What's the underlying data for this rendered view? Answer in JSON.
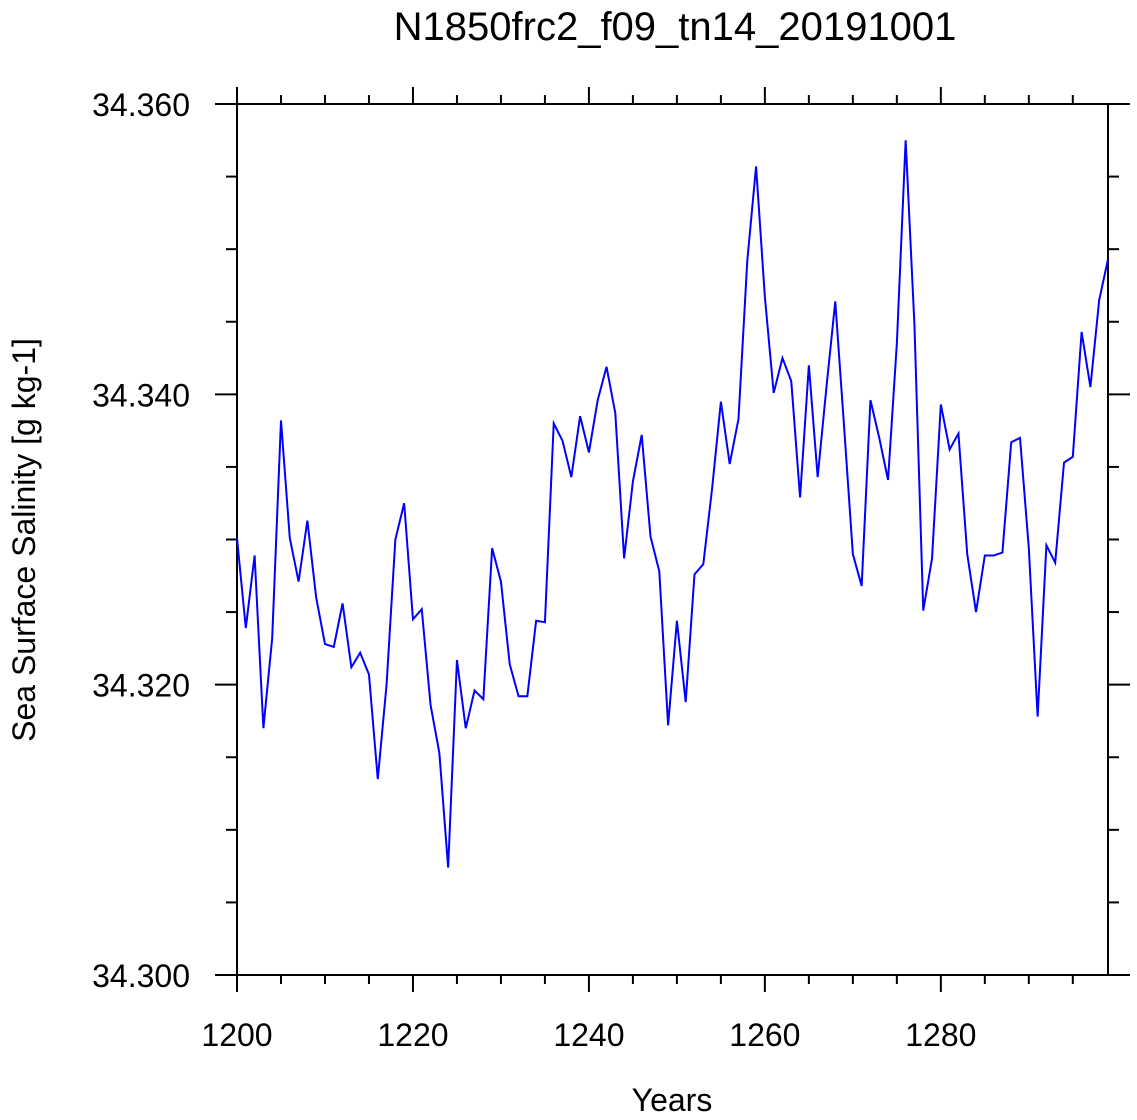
{
  "chart_data": {
    "type": "line",
    "title": "N1850frc2_f09_tn14_20191001",
    "xlabel": "Years",
    "ylabel": "Sea Surface Salinity [g kg-1]",
    "xlim": [
      1200,
      1299
    ],
    "ylim": [
      34.3,
      34.36
    ],
    "x_major_ticks": [
      1200,
      1220,
      1240,
      1260,
      1280
    ],
    "x_tick_labels": [
      "1200",
      "1220",
      "1240",
      "1260",
      "1280"
    ],
    "x_minor_step": 5,
    "y_major_ticks": [
      34.3,
      34.32,
      34.34,
      34.36
    ],
    "y_tick_labels": [
      "34.300",
      "34.320",
      "34.340",
      "34.360"
    ],
    "y_minor_step": 0.005,
    "line_color": "#0000ff",
    "series": [
      {
        "name": "Sea Surface Salinity",
        "x": [
          1200,
          1201,
          1202,
          1203,
          1204,
          1205,
          1206,
          1207,
          1208,
          1209,
          1210,
          1211,
          1212,
          1213,
          1214,
          1215,
          1216,
          1217,
          1218,
          1219,
          1220,
          1221,
          1222,
          1223,
          1224,
          1225,
          1226,
          1227,
          1228,
          1229,
          1230,
          1231,
          1232,
          1233,
          1234,
          1235,
          1236,
          1237,
          1238,
          1239,
          1240,
          1241,
          1242,
          1243,
          1244,
          1245,
          1246,
          1247,
          1248,
          1249,
          1250,
          1251,
          1252,
          1253,
          1254,
          1255,
          1256,
          1257,
          1258,
          1259,
          1260,
          1261,
          1262,
          1263,
          1264,
          1265,
          1266,
          1267,
          1268,
          1269,
          1270,
          1271,
          1272,
          1273,
          1274,
          1275,
          1276,
          1277,
          1278,
          1279,
          1280,
          1281,
          1282,
          1283,
          1284,
          1285,
          1286,
          1287,
          1288,
          1289,
          1290,
          1291,
          1292,
          1293,
          1294,
          1295,
          1296,
          1297,
          1298,
          1299
        ],
        "values": [
          34.3301,
          34.3239,
          34.3289,
          34.317,
          34.3232,
          34.3382,
          34.3301,
          34.3271,
          34.3313,
          34.326,
          34.3228,
          34.3226,
          34.3256,
          34.3212,
          34.3222,
          34.3207,
          34.3135,
          34.32,
          34.33,
          34.3325,
          34.3245,
          34.3252,
          34.3186,
          34.3153,
          34.3074,
          34.3217,
          34.317,
          34.3196,
          34.319,
          34.3294,
          34.3271,
          34.3214,
          34.3192,
          34.3192,
          34.3244,
          34.3243,
          34.338,
          34.3368,
          34.3343,
          34.3385,
          34.336,
          34.3396,
          34.3419,
          34.3387,
          34.3287,
          34.334,
          34.3372,
          34.3302,
          34.3278,
          34.3172,
          34.3244,
          34.3188,
          34.3276,
          34.3283,
          34.3335,
          34.3395,
          34.3352,
          34.3383,
          34.3492,
          34.3557,
          34.3467,
          34.3401,
          34.3425,
          34.3409,
          34.3329,
          34.342,
          34.3343,
          34.3405,
          34.3464,
          34.3378,
          34.329,
          34.3268,
          34.3396,
          34.337,
          34.3341,
          34.3435,
          34.3575,
          34.3448,
          34.3251,
          34.3287,
          34.3393,
          34.3362,
          34.3373,
          34.329,
          34.325,
          34.3289,
          34.3289,
          34.3291,
          34.3367,
          34.337,
          34.3294,
          34.3178,
          34.3296,
          34.3284,
          34.3353,
          34.3357,
          34.3443,
          34.3405,
          34.3465,
          34.3493
        ]
      }
    ]
  }
}
